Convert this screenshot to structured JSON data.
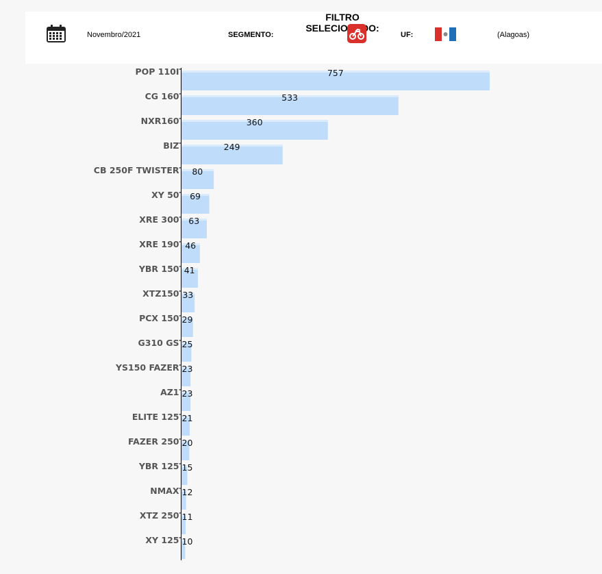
{
  "filter": {
    "title": "FILTRO SELECIONADO:",
    "period": "Novembro/2021",
    "segment_label": "SEGMENTO:",
    "segment_icon": "motorcycle-icon",
    "uf_label": "UF:",
    "uf_icon": "alagoas-flag-icon",
    "uf_name": "(Alagoas)"
  },
  "colors": {
    "bar": "#bfdcfa",
    "bar_highlight": "#d9ebfc",
    "axis": "#000000",
    "accent_red": "#d9302b"
  },
  "chart_data": {
    "type": "bar",
    "orientation": "horizontal",
    "categories": [
      "POP 110I",
      "CG 160",
      "NXR160",
      "BIZ",
      "CB 250F TWISTER",
      "XY 50",
      "XRE 300",
      "XRE 190",
      "YBR 150",
      "XTZ150",
      "PCX 150",
      "G310 GS",
      "YS150 FAZER",
      "AZ1",
      "ELITE 125",
      "FAZER 250",
      "YBR 125",
      "NMAX",
      "XTZ 250",
      "XY 125"
    ],
    "values": [
      757,
      533,
      360,
      249,
      80,
      69,
      63,
      46,
      41,
      33,
      29,
      25,
      23,
      23,
      21,
      20,
      15,
      12,
      11,
      10
    ],
    "xlim": [
      0,
      757
    ],
    "grid": false,
    "legend": "none"
  }
}
